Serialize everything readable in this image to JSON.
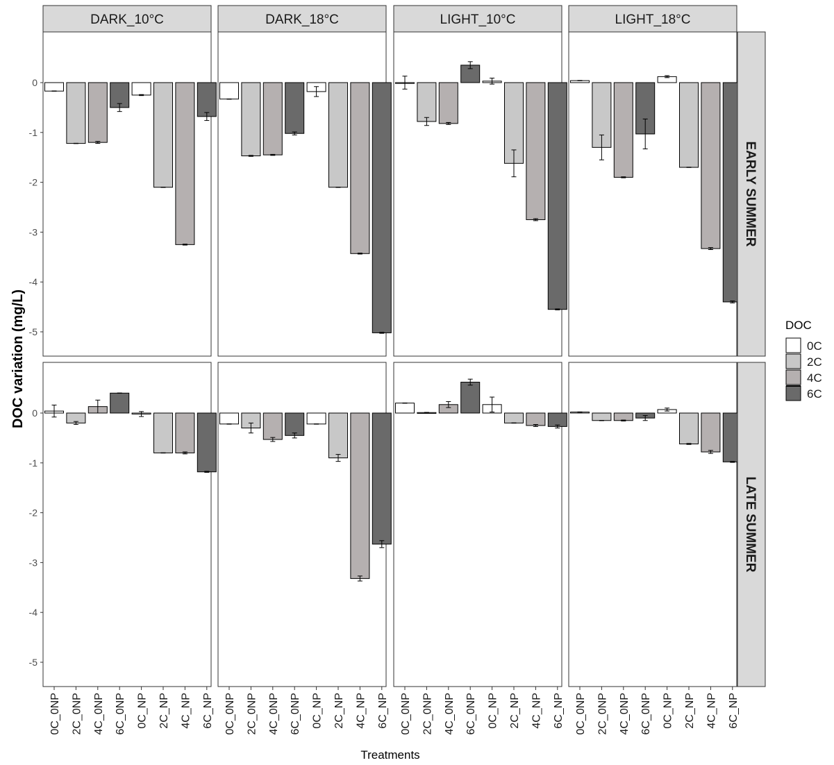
{
  "chart_data": {
    "type": "bar",
    "facets": {
      "columns": [
        "DARK_10°C",
        "DARK_18°C",
        "LIGHT_10°C",
        "LIGHT_18°C"
      ],
      "rows": [
        "EARLY SUMMER",
        "LATE SUMMER"
      ]
    },
    "categories": [
      "0C_0NP",
      "2C_0NP",
      "4C_0NP",
      "6C_0NP",
      "0C_NP",
      "2C_NP",
      "4C_NP",
      "6C_NP"
    ],
    "category_group": [
      "0C",
      "2C",
      "4C",
      "6C",
      "0C",
      "2C",
      "4C",
      "6C"
    ],
    "xlabel": "Treatments",
    "ylabel": "DOC variation (mg/L)",
    "ylim": [
      -5.5,
      1.0
    ],
    "yticks": [
      0,
      -1,
      -2,
      -3,
      -4,
      -5
    ],
    "grid": false,
    "legend": {
      "title": "DOC",
      "placement": "right",
      "entries": [
        {
          "label": "0C",
          "color": "#FFFFFF"
        },
        {
          "label": "2C",
          "color": "#C8C8C8"
        },
        {
          "label": "4C",
          "color": "#B5B0B0"
        },
        {
          "label": "6C",
          "color": "#6A6A6A"
        }
      ]
    },
    "panels": [
      {
        "row": "EARLY SUMMER",
        "column": "DARK_10°C",
        "values": [
          -0.17,
          -1.22,
          -1.2,
          -0.5,
          -0.25,
          -2.1,
          -3.25,
          -0.68
        ],
        "errors": [
          0.0,
          0.0,
          0.02,
          0.08,
          0.01,
          0.0,
          0.01,
          0.08
        ]
      },
      {
        "row": "EARLY SUMMER",
        "column": "DARK_18°C",
        "values": [
          -0.33,
          -1.47,
          -1.45,
          -1.02,
          -0.18,
          -2.1,
          -3.43,
          -5.02
        ],
        "errors": [
          0.0,
          0.01,
          0.01,
          0.03,
          0.1,
          0.0,
          0.01,
          0.01
        ]
      },
      {
        "row": "EARLY SUMMER",
        "column": "LIGHT_10°C",
        "values": [
          0.0,
          -0.78,
          -0.82,
          0.35,
          0.03,
          -1.62,
          -2.75,
          -4.55
        ],
        "errors": [
          0.13,
          0.08,
          0.02,
          0.07,
          0.06,
          0.27,
          0.02,
          0.01
        ]
      },
      {
        "row": "EARLY SUMMER",
        "column": "LIGHT_18°C",
        "values": [
          0.04,
          -1.3,
          -1.9,
          -1.03,
          0.12,
          -1.7,
          -3.33,
          -4.4
        ],
        "errors": [
          0.0,
          0.25,
          0.01,
          0.3,
          0.02,
          0.0,
          0.02,
          0.02
        ]
      },
      {
        "row": "LATE SUMMER",
        "column": "DARK_10°C",
        "values": [
          0.04,
          -0.2,
          0.13,
          0.4,
          -0.02,
          -0.8,
          -0.8,
          -1.18
        ],
        "errors": [
          0.12,
          0.03,
          0.13,
          0.0,
          0.05,
          0.0,
          0.02,
          0.01
        ]
      },
      {
        "row": "LATE SUMMER",
        "column": "DARK_18°C",
        "values": [
          -0.22,
          -0.3,
          -0.53,
          -0.45,
          -0.22,
          -0.9,
          -3.32,
          -2.63
        ],
        "errors": [
          0.0,
          0.1,
          0.04,
          0.05,
          0.0,
          0.07,
          0.05,
          0.07
        ]
      },
      {
        "row": "LATE SUMMER",
        "column": "LIGHT_10°C",
        "values": [
          0.2,
          0.01,
          0.17,
          0.62,
          0.17,
          -0.2,
          -0.25,
          -0.27
        ],
        "errors": [
          0.0,
          0.0,
          0.06,
          0.06,
          0.15,
          0.0,
          0.02,
          0.03
        ]
      },
      {
        "row": "LATE SUMMER",
        "column": "LIGHT_18°C",
        "values": [
          0.02,
          -0.15,
          -0.15,
          -0.1,
          0.07,
          -0.62,
          -0.78,
          -0.98
        ],
        "errors": [
          0.0,
          0.0,
          0.01,
          0.05,
          0.03,
          0.01,
          0.03,
          0.01
        ]
      }
    ]
  }
}
